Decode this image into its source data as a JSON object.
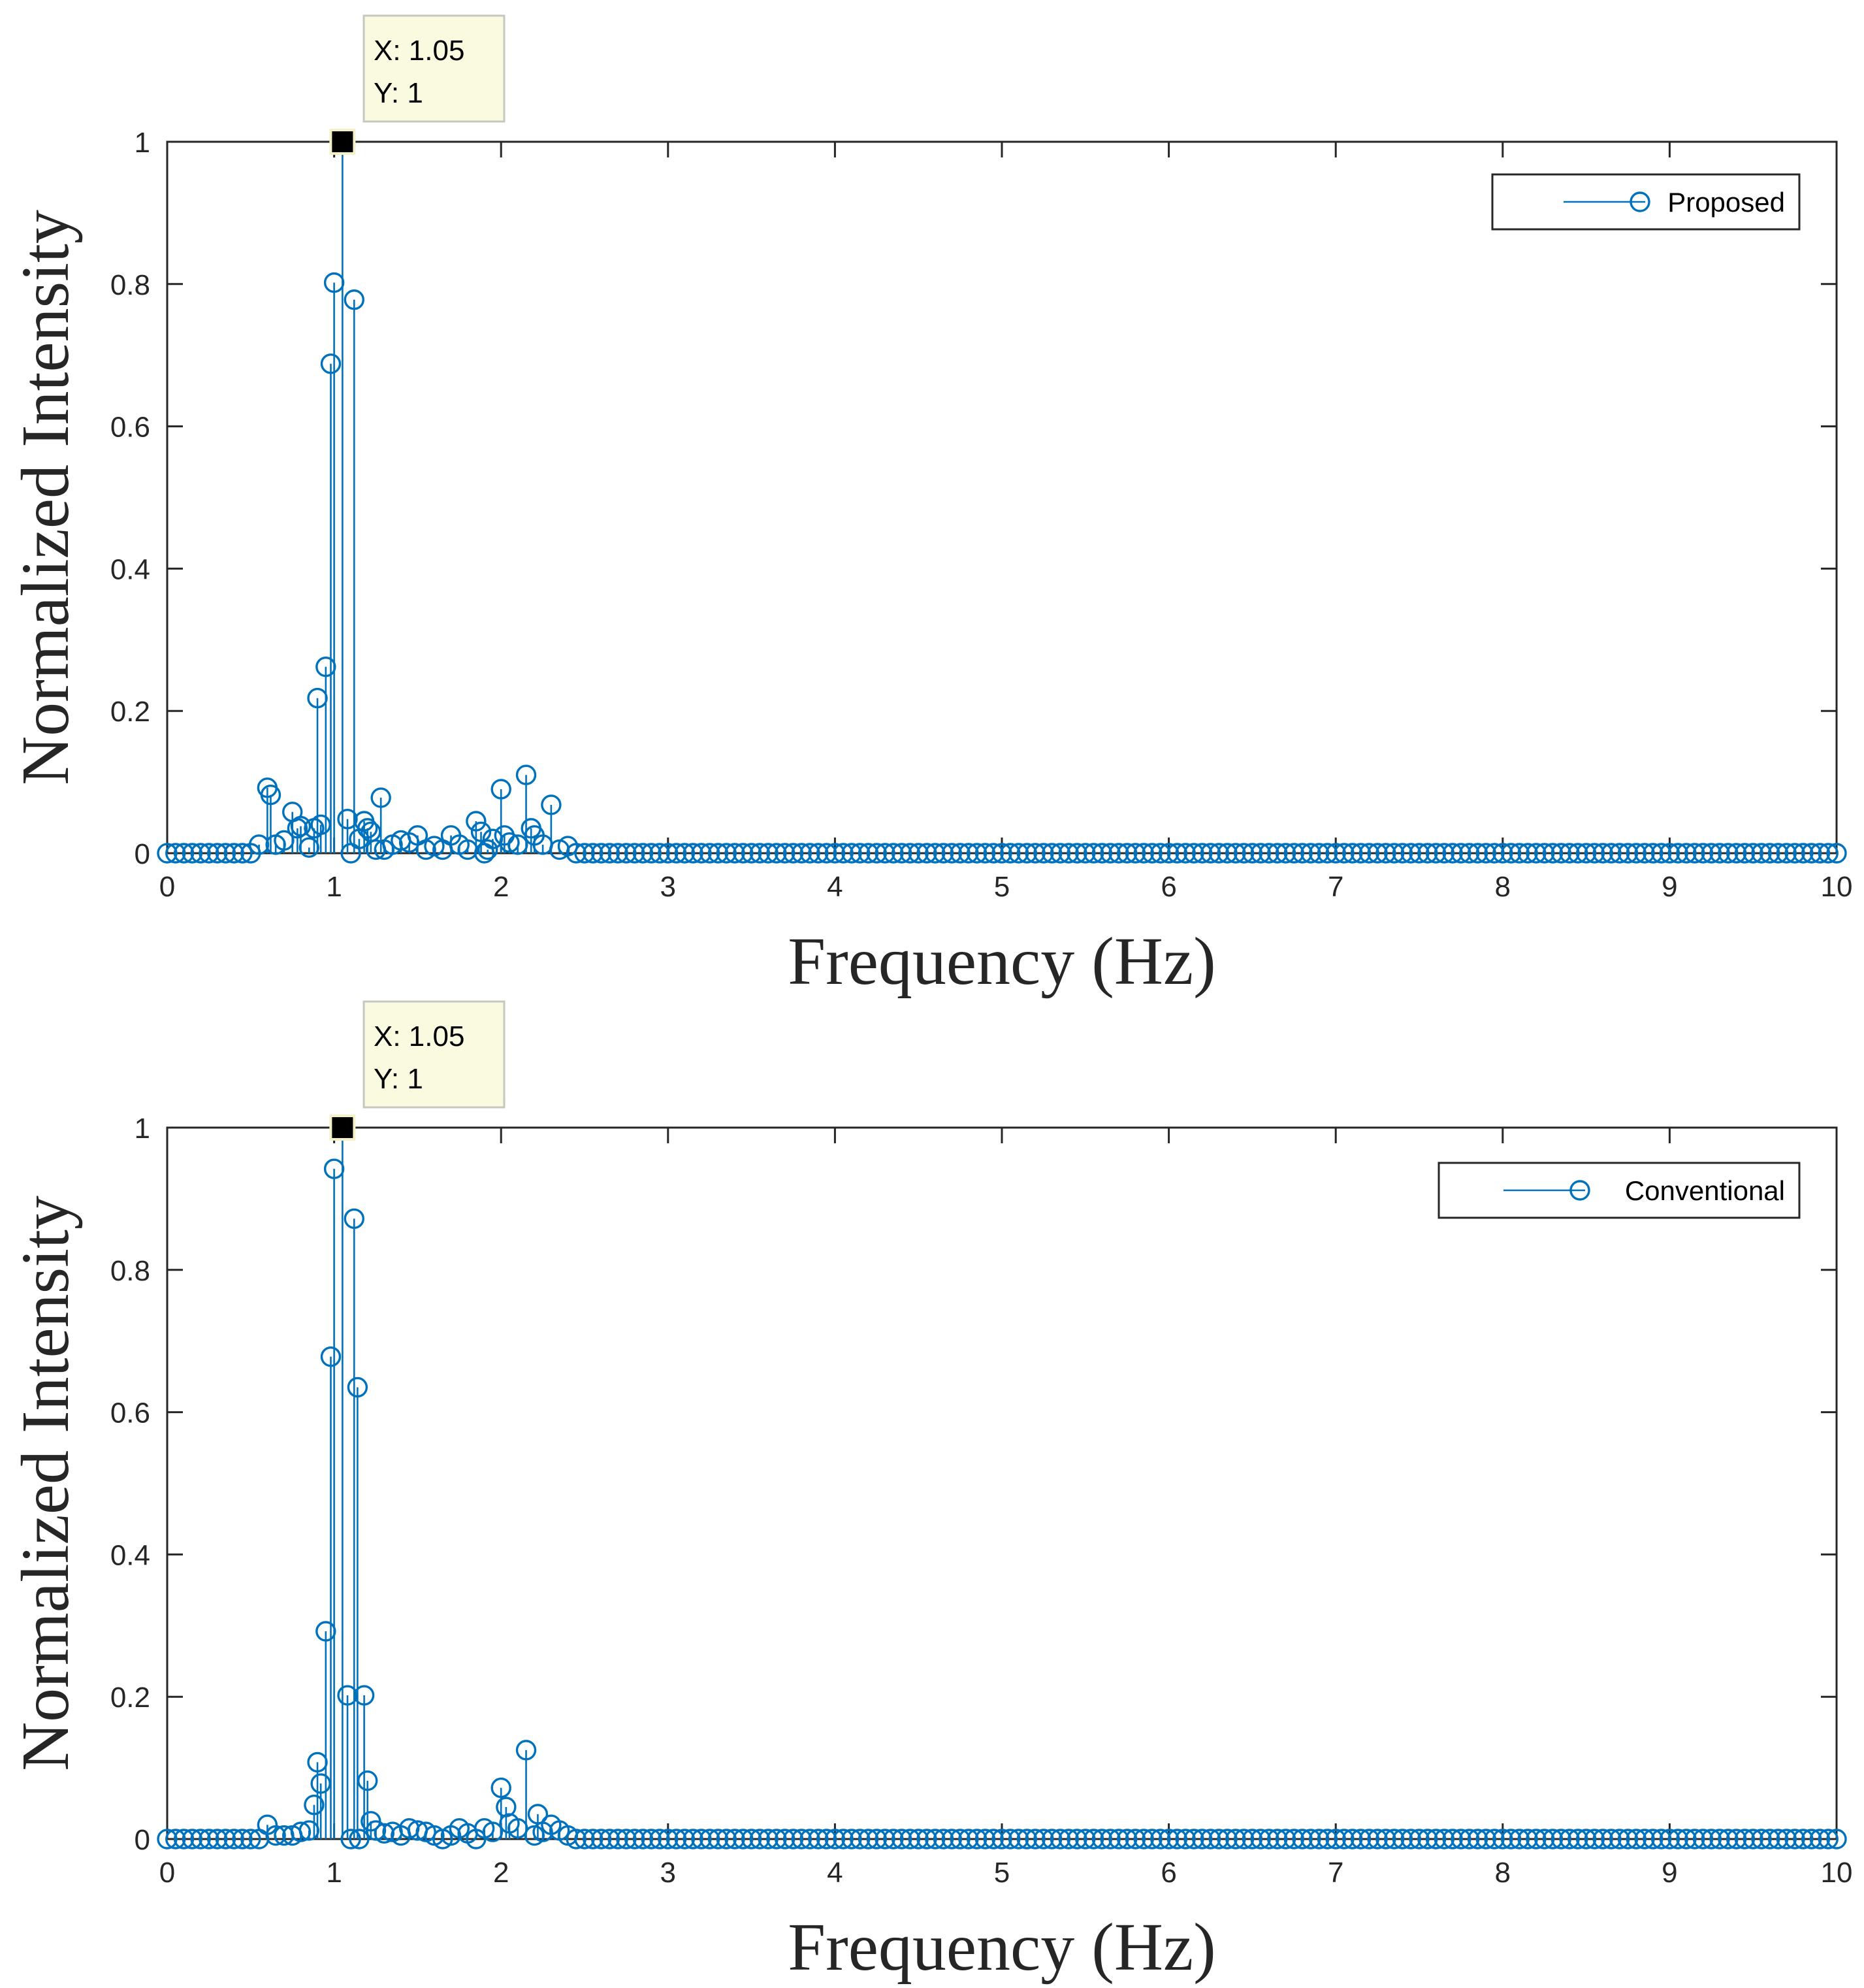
{
  "chart_data": [
    {
      "type": "stem",
      "xlabel": "Frequency (Hz)",
      "ylabel": "Normalized Intensity",
      "xlim": [
        0,
        10
      ],
      "ylim": [
        0,
        1
      ],
      "xticks": [
        "0",
        "1",
        "2",
        "3",
        "4",
        "5",
        "6",
        "7",
        "8",
        "9",
        "10"
      ],
      "yticks": [
        "0",
        "0.2",
        "0.4",
        "0.6",
        "0.8",
        "1"
      ],
      "legend": "Proposed",
      "legend_position": "top-right",
      "color": "#0072BD",
      "datatip": {
        "x_text": "X: 1.05",
        "y_text": "Y: 1",
        "x": 1.05,
        "y": 1
      },
      "peaks": [
        [
          0.55,
          0.012
        ],
        [
          0.6,
          0.092
        ],
        [
          0.62,
          0.082
        ],
        [
          0.65,
          0.012
        ],
        [
          0.7,
          0.018
        ],
        [
          0.75,
          0.058
        ],
        [
          0.78,
          0.035
        ],
        [
          0.8,
          0.038
        ],
        [
          0.85,
          0.008
        ],
        [
          0.88,
          0.035
        ],
        [
          0.9,
          0.218
        ],
        [
          0.92,
          0.04
        ],
        [
          0.95,
          0.262
        ],
        [
          0.98,
          0.688
        ],
        [
          1.0,
          0.802
        ],
        [
          1.05,
          1.0
        ],
        [
          1.08,
          0.048
        ],
        [
          1.12,
          0.778
        ],
        [
          1.15,
          0.02
        ],
        [
          1.18,
          0.045
        ],
        [
          1.2,
          0.035
        ],
        [
          1.22,
          0.03
        ],
        [
          1.25,
          0.005
        ],
        [
          1.28,
          0.078
        ],
        [
          1.3,
          0.005
        ],
        [
          1.35,
          0.012
        ],
        [
          1.4,
          0.018
        ],
        [
          1.45,
          0.015
        ],
        [
          1.5,
          0.025
        ],
        [
          1.55,
          0.005
        ],
        [
          1.6,
          0.01
        ],
        [
          1.65,
          0.005
        ],
        [
          1.7,
          0.025
        ],
        [
          1.75,
          0.012
        ],
        [
          1.8,
          0.005
        ],
        [
          1.85,
          0.045
        ],
        [
          1.88,
          0.03
        ],
        [
          1.92,
          0.005
        ],
        [
          1.95,
          0.02
        ],
        [
          2.0,
          0.09
        ],
        [
          2.02,
          0.025
        ],
        [
          2.05,
          0.015
        ],
        [
          2.1,
          0.012
        ],
        [
          2.15,
          0.11
        ],
        [
          2.18,
          0.035
        ],
        [
          2.2,
          0.025
        ],
        [
          2.25,
          0.012
        ],
        [
          2.3,
          0.068
        ],
        [
          2.35,
          0.005
        ],
        [
          2.4,
          0.01
        ]
      ]
    },
    {
      "type": "stem",
      "xlabel": "Frequency (Hz)",
      "ylabel": "Normalized Intensity",
      "xlim": [
        0,
        10
      ],
      "ylim": [
        0,
        1
      ],
      "xticks": [
        "0",
        "1",
        "2",
        "3",
        "4",
        "5",
        "6",
        "7",
        "8",
        "9",
        "10"
      ],
      "yticks": [
        "0",
        "0.2",
        "0.4",
        "0.6",
        "0.8",
        "1"
      ],
      "legend": "Conventional",
      "legend_position": "top-right",
      "color": "#0072BD",
      "datatip": {
        "x_text": "X: 1.05",
        "y_text": "Y: 1",
        "x": 1.05,
        "y": 1
      },
      "peaks": [
        [
          0.6,
          0.02
        ],
        [
          0.65,
          0.005
        ],
        [
          0.7,
          0.005
        ],
        [
          0.75,
          0.005
        ],
        [
          0.8,
          0.01
        ],
        [
          0.85,
          0.012
        ],
        [
          0.88,
          0.048
        ],
        [
          0.9,
          0.108
        ],
        [
          0.92,
          0.078
        ],
        [
          0.95,
          0.292
        ],
        [
          0.98,
          0.678
        ],
        [
          1.0,
          0.942
        ],
        [
          1.05,
          1.0
        ],
        [
          1.08,
          0.202
        ],
        [
          1.12,
          0.872
        ],
        [
          1.14,
          0.635
        ],
        [
          1.18,
          0.202
        ],
        [
          1.2,
          0.082
        ],
        [
          1.22,
          0.025
        ],
        [
          1.25,
          0.012
        ],
        [
          1.3,
          0.008
        ],
        [
          1.35,
          0.01
        ],
        [
          1.4,
          0.005
        ],
        [
          1.45,
          0.015
        ],
        [
          1.5,
          0.012
        ],
        [
          1.55,
          0.01
        ],
        [
          1.6,
          0.005
        ],
        [
          1.7,
          0.005
        ],
        [
          1.75,
          0.015
        ],
        [
          1.8,
          0.008
        ],
        [
          1.9,
          0.015
        ],
        [
          1.95,
          0.01
        ],
        [
          2.0,
          0.072
        ],
        [
          2.03,
          0.045
        ],
        [
          2.05,
          0.022
        ],
        [
          2.1,
          0.015
        ],
        [
          2.15,
          0.125
        ],
        [
          2.2,
          0.005
        ],
        [
          2.22,
          0.035
        ],
        [
          2.25,
          0.01
        ],
        [
          2.3,
          0.02
        ],
        [
          2.35,
          0.012
        ],
        [
          2.4,
          0.005
        ]
      ]
    }
  ]
}
